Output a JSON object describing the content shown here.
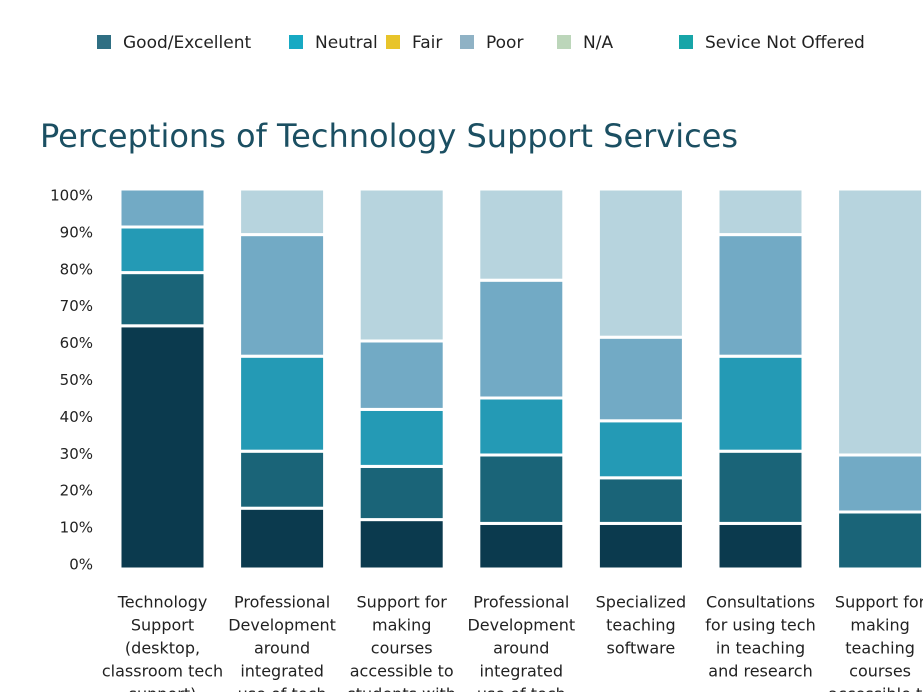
{
  "chart_data": {
    "type": "stacked_bar",
    "title": "Perceptions of Technology Support Services",
    "categories": [
      [
        "Technology",
        "Support",
        "(desktop,",
        "classroom tech",
        "support)"
      ],
      [
        "Professional",
        "Development",
        "around",
        "integrated",
        "use of tech"
      ],
      [
        "Support for",
        "making",
        "courses",
        "accessible to",
        "students with"
      ],
      [
        "Professional",
        "Development",
        "around",
        "integrated",
        "use of tech"
      ],
      [
        "Specialized",
        "teaching",
        "software"
      ],
      [
        "Consultations",
        "for using tech",
        "in teaching",
        "and research"
      ],
      [
        "Support for",
        "making",
        "teaching",
        "courses",
        "accessible to"
      ]
    ],
    "series": [
      {
        "name": "Good/Excellent",
        "color": "#2f6f83",
        "bar_color": "#0b3a4e",
        "values": [
          64,
          16,
          13,
          12,
          12,
          12,
          0
        ]
      },
      {
        "name": "Neutral",
        "color": "#17a9c3",
        "bar_color": "#1a6478",
        "values": [
          14,
          15,
          14,
          18,
          12,
          19,
          15
        ]
      },
      {
        "name": "Fair",
        "color": "#e8c42a",
        "bar_color": "#249ab5",
        "values": [
          12,
          25,
          15,
          15,
          15,
          25,
          0
        ]
      },
      {
        "name": "Poor",
        "color": "#8fb2c5",
        "bar_color": "#72aac5",
        "values": [
          10,
          32,
          18,
          31,
          22,
          32,
          15
        ]
      },
      {
        "name": "N/A",
        "color": "#bcd6ba",
        "bar_color": "#b7d4de",
        "values": [
          0,
          12,
          40,
          24,
          39,
          12,
          70
        ]
      },
      {
        "name": "Sevice Not Offered",
        "color": "#17a5a8",
        "bar_color": "#17a5a8",
        "values": [
          0,
          0,
          0,
          0,
          0,
          0,
          0
        ]
      }
    ],
    "ylim": [
      0,
      100
    ],
    "yticks": [
      {
        "value": 0,
        "label": "0%"
      },
      {
        "value": 10,
        "label": "10%"
      },
      {
        "value": 20,
        "label": "20%"
      },
      {
        "value": 30,
        "label": "30%"
      },
      {
        "value": 40,
        "label": "40%"
      },
      {
        "value": 50,
        "label": "50%"
      },
      {
        "value": 60,
        "label": "60%"
      },
      {
        "value": 70,
        "label": "70%"
      },
      {
        "value": 80,
        "label": "80%"
      },
      {
        "value": 90,
        "label": "90%"
      },
      {
        "value": 100,
        "label": "100%"
      }
    ],
    "legend": "top"
  }
}
